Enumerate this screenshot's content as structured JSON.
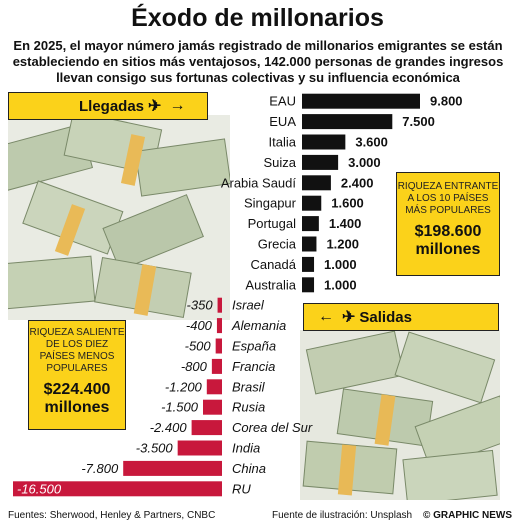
{
  "header": {
    "title": "Éxodo de millonarios",
    "subtitle": "En 2025, el mayor número jamás registrado de millonarios emigrantes se están estableciendo en sitios más ventajosos, 142.000 personas de grandes ingresos llevan consigo sus fortunas colectivas y su influencia económica"
  },
  "arrivals_label": "Llegadas",
  "departures_label": "Salidas",
  "info_in": {
    "caption": "RIQUEZA ENTRANTE A LOS 10 PAÍSES MÁS POPULARES",
    "value": "$198.600 millones"
  },
  "info_out": {
    "caption": "RIQUEZA SALIENTE DE LOS DIEZ PAÍSES MENOS POPULARES",
    "value": "$224.400 millones"
  },
  "colors": {
    "arrivals_bar": "#111111",
    "departures_bar": "#c8183c",
    "accent": "#fbd21a"
  },
  "chart_data": {
    "type": "bar",
    "orientation": "horizontal",
    "categories": [
      "EAU",
      "EUA",
      "Italia",
      "Suiza",
      "Arabia Saudí",
      "Singapur",
      "Portugal",
      "Grecia",
      "Canadá",
      "Australia",
      "Israel",
      "Alemania",
      "España",
      "Francia",
      "Brasil",
      "Rusia",
      "Corea del Sur",
      "India",
      "China",
      "RU"
    ],
    "values": [
      9800,
      7500,
      3600,
      3000,
      2400,
      1600,
      1400,
      1200,
      1000,
      1000,
      -350,
      -400,
      -500,
      -800,
      -1200,
      -1500,
      -2400,
      -3500,
      -7800,
      -16500
    ],
    "value_labels": [
      "9.800",
      "7.500",
      "3.600",
      "3.000",
      "2.400",
      "1.600",
      "1.400",
      "1.200",
      "1.000",
      "1.000",
      "-350",
      "-400",
      "-500",
      "-800",
      "-1.200",
      "-1.500",
      "-2.400",
      "-3.500",
      "-7.800",
      "-16.500"
    ],
    "series": [
      {
        "name": "Llegadas",
        "categories": [
          "EAU",
          "EUA",
          "Italia",
          "Suiza",
          "Arabia Saudí",
          "Singapur",
          "Portugal",
          "Grecia",
          "Canadá",
          "Australia"
        ]
      },
      {
        "name": "Salidas",
        "categories": [
          "Israel",
          "Alemania",
          "España",
          "Francia",
          "Brasil",
          "Rusia",
          "Corea del Sur",
          "India",
          "China",
          "RU"
        ]
      }
    ]
  },
  "footer": {
    "sources": "Fuentes: Sherwood, Henley & Partners, CNBC",
    "photo_credit": "Fuente de ilustración: Unsplash",
    "brand": "© GRAPHIC NEWS"
  }
}
